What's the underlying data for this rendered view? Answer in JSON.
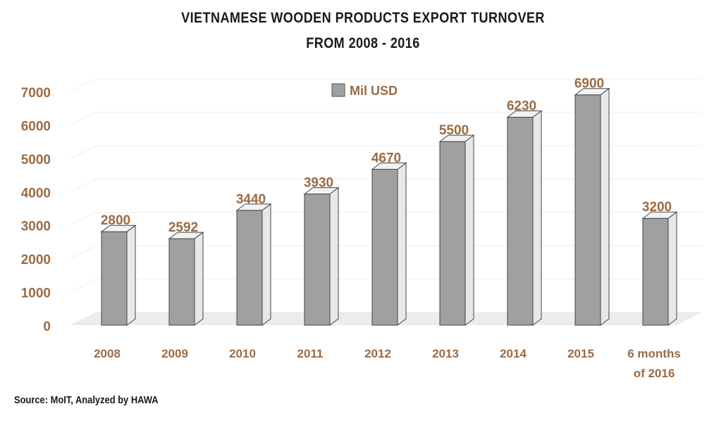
{
  "title_line1": "VIETNAMESE WOODEN PRODUCTS EXPORT TURNOVER",
  "title_line2": "FROM 2008 - 2016",
  "source": "Source: MoIT, Analyzed by HAWA",
  "colors": {
    "bar_front": "#a0a0a0",
    "bar_side": "#e8e8e8",
    "bar_top": "#f2f2f2",
    "label": "#9b6b44",
    "floor": "#ececec"
  },
  "chart_data": {
    "type": "bar",
    "title": "VIETNAMESE WOODEN PRODUCTS EXPORT TURNOVER FROM 2008 - 2016",
    "categories": [
      "2008",
      "2009",
      "2010",
      "2011",
      "2012",
      "2013",
      "2014",
      "2015",
      "6 months of 2016"
    ],
    "category_lines": [
      [
        "2008"
      ],
      [
        "2009"
      ],
      [
        "2010"
      ],
      [
        "2011"
      ],
      [
        "2012"
      ],
      [
        "2013"
      ],
      [
        "2014"
      ],
      [
        "2015"
      ],
      [
        "6 months",
        "of 2016"
      ]
    ],
    "series": [
      {
        "name": "Mil USD",
        "values": [
          2800,
          2592,
          3440,
          3930,
          4670,
          5500,
          6230,
          6900,
          3200
        ]
      }
    ],
    "ylim": [
      0,
      7000
    ],
    "yticks": [
      0,
      1000,
      2000,
      3000,
      4000,
      5000,
      6000,
      7000
    ],
    "grid": true,
    "legend_position": "top-center",
    "style": "3d-column"
  }
}
